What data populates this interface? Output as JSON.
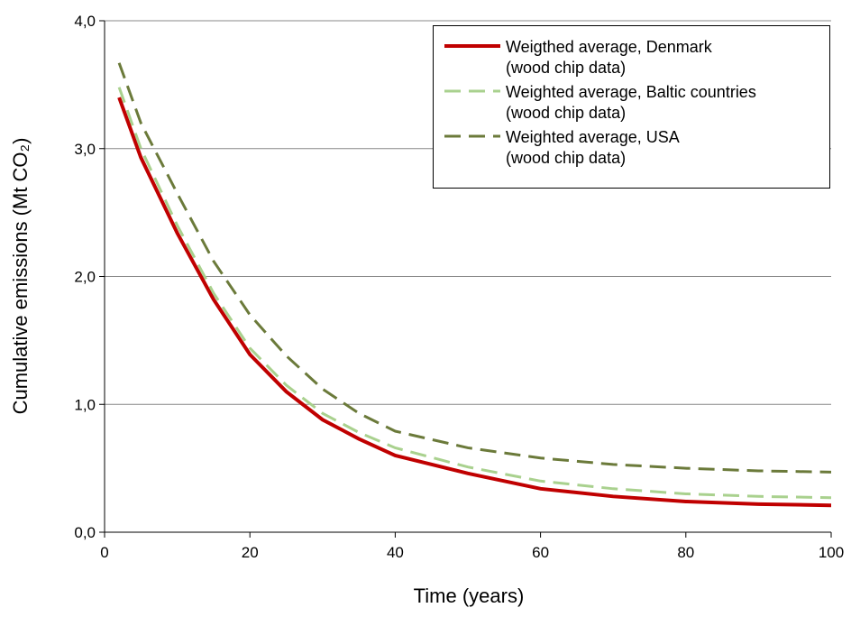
{
  "chart_data": {
    "type": "line",
    "xlabel": "Time (years)",
    "ylabel": "Cumulative emissions (Mt CO₂)",
    "x": [
      2,
      5,
      10,
      15,
      20,
      25,
      30,
      35,
      40,
      50,
      60,
      70,
      80,
      90,
      100
    ],
    "series": [
      {
        "name": "Weigthed average, Denmark\n(wood chip data)",
        "color": "#c00000",
        "dash": "solid",
        "values": [
          3.4,
          2.93,
          2.34,
          1.82,
          1.39,
          1.1,
          0.88,
          0.73,
          0.6,
          0.46,
          0.34,
          0.28,
          0.24,
          0.22,
          0.21
        ]
      },
      {
        "name": "Weighted average, Baltic countries\n(wood chip data)",
        "color": "#a9d18e",
        "dash": "dashed",
        "values": [
          3.48,
          3.0,
          2.4,
          1.87,
          1.44,
          1.15,
          0.93,
          0.78,
          0.66,
          0.51,
          0.4,
          0.34,
          0.3,
          0.28,
          0.27
        ]
      },
      {
        "name": "Weighted average, USA\n(wood chip data)",
        "color": "#6b7a3a",
        "dash": "dashed",
        "values": [
          3.67,
          3.2,
          2.65,
          2.12,
          1.7,
          1.38,
          1.12,
          0.93,
          0.79,
          0.66,
          0.58,
          0.53,
          0.5,
          0.48,
          0.47
        ]
      }
    ],
    "xlim": [
      0,
      100
    ],
    "xticks": [
      0,
      20,
      40,
      60,
      80,
      100
    ],
    "ylim": [
      0,
      4
    ],
    "yticks": [
      {
        "value": 0,
        "label": "0,0"
      },
      {
        "value": 1,
        "label": "1,0"
      },
      {
        "value": 2,
        "label": "2,0"
      },
      {
        "value": 3,
        "label": "3,0"
      },
      {
        "value": 4,
        "label": "4,0"
      }
    ],
    "grid": true,
    "legend": "upper right"
  }
}
